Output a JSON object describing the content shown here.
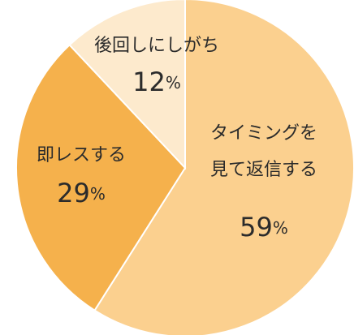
{
  "chart_data": {
    "type": "pie",
    "categories": [
      "タイミングを\n見て返信する",
      "即レスする",
      "後回しにしがち"
    ],
    "values": [
      59,
      29,
      12
    ],
    "value_labels": [
      "59%",
      "29%",
      "12%"
    ],
    "colors": [
      "#fbd08f",
      "#f5b14c",
      "#fdeacd"
    ]
  }
}
